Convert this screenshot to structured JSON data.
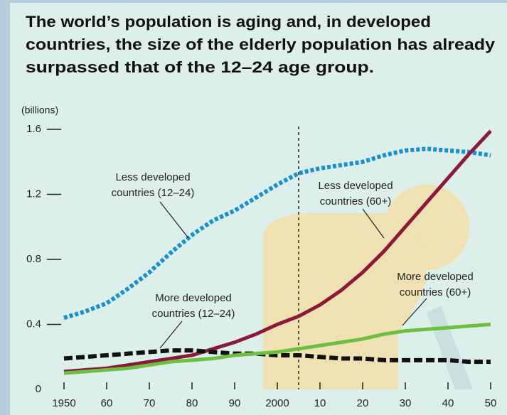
{
  "chart_data": {
    "type": "line",
    "title": [
      "The world’s population is aging and, in developed",
      "countries, the size of the elderly population has already",
      "surpassed that of the 12–24 age group."
    ],
    "y_label": "(billions)",
    "x": [
      1950,
      1955,
      1960,
      1965,
      1970,
      1975,
      1980,
      1985,
      1990,
      1995,
      2000,
      2005,
      2010,
      2015,
      2020,
      2025,
      2030,
      2035,
      2040,
      2045,
      2050
    ],
    "series": [
      {
        "name": [
          "Less developed",
          "countries (12–24)"
        ],
        "color": "#1a8fd0",
        "dash": "dotted",
        "values": [
          0.44,
          0.48,
          0.53,
          0.62,
          0.72,
          0.84,
          0.95,
          1.04,
          1.1,
          1.18,
          1.26,
          1.33,
          1.36,
          1.38,
          1.4,
          1.44,
          1.47,
          1.48,
          1.47,
          1.46,
          1.44
        ]
      },
      {
        "name": [
          "Less developed",
          "countries (60+)"
        ],
        "color": "#8b1a3a",
        "dash": "solid",
        "values": [
          0.11,
          0.12,
          0.13,
          0.15,
          0.17,
          0.19,
          0.21,
          0.25,
          0.29,
          0.34,
          0.4,
          0.45,
          0.52,
          0.61,
          0.72,
          0.85,
          1.0,
          1.15,
          1.3,
          1.45,
          1.59
        ]
      },
      {
        "name": [
          "More developed",
          "countries (12–24)"
        ],
        "color": "#111111",
        "dash": "dashed",
        "values": [
          0.19,
          0.2,
          0.21,
          0.22,
          0.23,
          0.24,
          0.24,
          0.23,
          0.22,
          0.22,
          0.21,
          0.21,
          0.2,
          0.19,
          0.19,
          0.18,
          0.18,
          0.18,
          0.18,
          0.17,
          0.17
        ]
      },
      {
        "name": [
          "More developed",
          "countries (60+)"
        ],
        "color": "#6cbf3f",
        "dash": "solid",
        "values": [
          0.1,
          0.11,
          0.12,
          0.13,
          0.15,
          0.17,
          0.18,
          0.19,
          0.21,
          0.22,
          0.23,
          0.25,
          0.27,
          0.29,
          0.31,
          0.34,
          0.36,
          0.37,
          0.38,
          0.39,
          0.4
        ]
      }
    ],
    "vline": 2005,
    "xlim": [
      1950,
      2050
    ],
    "xticks": [
      1950,
      {
        "value": 1960,
        "label": "60"
      },
      {
        "value": 1970,
        "label": "70"
      },
      {
        "value": 1980,
        "label": "80"
      },
      {
        "value": 1990,
        "label": "90"
      },
      2000,
      {
        "value": 2010,
        "label": "10"
      },
      {
        "value": 2020,
        "label": "20"
      },
      {
        "value": 2030,
        "label": "30"
      },
      {
        "value": 2040,
        "label": "40"
      },
      {
        "value": 2050,
        "label": "50"
      }
    ],
    "ylim": [
      0,
      1.6
    ],
    "yticks": [
      0,
      0.4,
      0.8,
      1.2,
      1.6
    ],
    "grid": false
  }
}
